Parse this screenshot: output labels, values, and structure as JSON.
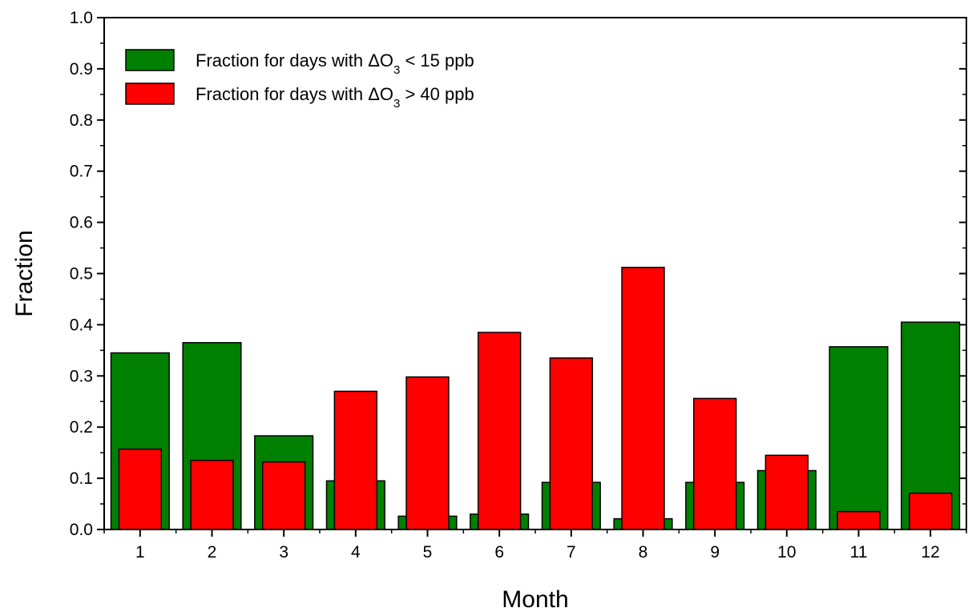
{
  "chart_data": {
    "type": "bar",
    "xlabel": "Month",
    "ylabel": "Fraction",
    "ylim": [
      0,
      1.0
    ],
    "yticks": [
      "0.0",
      "0.1",
      "0.2",
      "0.3",
      "0.4",
      "0.5",
      "0.6",
      "0.7",
      "0.8",
      "0.9",
      "1.0"
    ],
    "categories": [
      "1",
      "2",
      "3",
      "4",
      "5",
      "6",
      "7",
      "8",
      "9",
      "10",
      "11",
      "12"
    ],
    "grid": false,
    "legend_position": "top-left",
    "series": [
      {
        "legend_prefix": "Fraction for days with ",
        "legend_delta": "ΔO",
        "legend_sub": "3",
        "legend_suffix": " < 15 ppb",
        "color": "#008000",
        "values": [
          0.345,
          0.365,
          0.183,
          0.095,
          0.026,
          0.03,
          0.092,
          0.021,
          0.092,
          0.115,
          0.357,
          0.405
        ]
      },
      {
        "legend_prefix": "Fraction for days with ",
        "legend_delta": "ΔO",
        "legend_sub": "3",
        "legend_suffix": " > 40 ppb",
        "color": "#ff0000",
        "values": [
          0.157,
          0.135,
          0.132,
          0.27,
          0.298,
          0.385,
          0.335,
          0.512,
          0.256,
          0.145,
          0.035,
          0.071
        ]
      }
    ]
  }
}
